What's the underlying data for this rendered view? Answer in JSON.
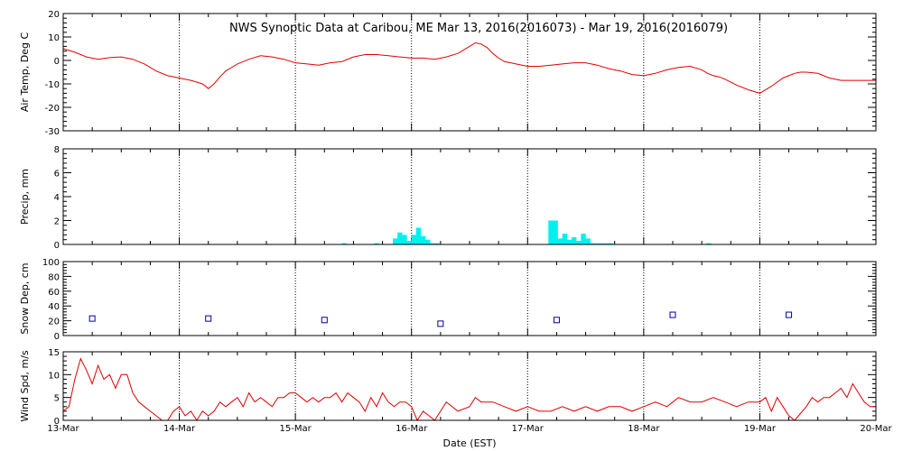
{
  "title": "NWS Synoptic Data at Caribou, ME   Mar 13, 2016(2016073) - Mar 19, 2016(2016079)",
  "colors": {
    "temp": "#e00000",
    "precip": "#00f0f0",
    "snow": "#0000a0",
    "wind": "#e00000",
    "grid": "#000000"
  },
  "chart_data": [
    {
      "type": "line",
      "ylabel": "Air Temp, Deg C",
      "ylim": [
        -30,
        20
      ],
      "yticks": [
        20,
        10,
        0,
        -10,
        -20,
        -30
      ],
      "xlim": [
        0,
        7
      ],
      "grid": true,
      "series": [
        {
          "x": [
            0,
            0.1,
            0.2,
            0.3,
            0.4,
            0.5,
            0.6,
            0.7,
            0.8,
            0.9,
            1.0,
            1.1,
            1.2,
            1.25,
            1.3,
            1.35,
            1.4,
            1.5,
            1.6,
            1.7,
            1.8,
            1.9,
            2.0,
            2.1,
            2.2,
            2.3,
            2.4,
            2.5,
            2.6,
            2.7,
            2.8,
            2.9,
            3.0,
            3.1,
            3.2,
            3.3,
            3.4,
            3.5,
            3.55,
            3.6,
            3.65,
            3.7,
            3.75,
            3.8,
            3.9,
            4.0,
            4.1,
            4.2,
            4.3,
            4.4,
            4.5,
            4.6,
            4.7,
            4.8,
            4.9,
            5.0,
            5.1,
            5.2,
            5.3,
            5.4,
            5.5,
            5.55,
            5.6,
            5.65,
            5.7,
            5.8,
            5.9,
            6.0,
            6.1,
            6.2,
            6.25,
            6.3,
            6.35,
            6.4,
            6.5,
            6.6,
            6.7,
            6.8,
            6.9,
            7.0
          ],
          "values": [
            5,
            3.5,
            1.5,
            0.5,
            1.2,
            1.5,
            0.5,
            -1.5,
            -4.5,
            -6.5,
            -7.5,
            -8.5,
            -10,
            -12,
            -10,
            -7,
            -4.5,
            -1.5,
            0.5,
            2,
            1.5,
            0.5,
            -1,
            -1.5,
            -2,
            -1,
            -0.5,
            1.5,
            2.5,
            2.5,
            2,
            1.5,
            1,
            1,
            0.5,
            1.5,
            3,
            6,
            7.5,
            7,
            5.5,
            3,
            1,
            -0.5,
            -1.5,
            -2.5,
            -2.5,
            -2,
            -1.5,
            -1,
            -1,
            -2,
            -3.5,
            -4.5,
            -6,
            -6.5,
            -5.5,
            -4,
            -3,
            -2.5,
            -4,
            -5.5,
            -6.5,
            -7,
            -8,
            -10.5,
            -12.5,
            -14,
            -11,
            -7.5,
            -6.5,
            -5.5,
            -5,
            -5,
            -5.5,
            -7.5,
            -8.5,
            -8.5,
            -8.5,
            -8.5
          ]
        }
      ]
    },
    {
      "type": "bar",
      "ylabel": "Precip, mm",
      "ylim": [
        0,
        8
      ],
      "yticks": [
        8,
        6,
        4,
        2,
        0
      ],
      "xlim": [
        0,
        7
      ],
      "grid": true,
      "x": [
        2.42,
        2.7,
        2.86,
        2.9,
        2.94,
        2.98,
        3.02,
        3.06,
        3.1,
        3.14,
        3.18,
        3.22,
        4.2,
        4.24,
        4.28,
        4.32,
        4.36,
        4.4,
        4.44,
        4.48,
        4.52,
        4.56,
        4.6,
        4.64,
        4.68,
        4.72,
        5.56
      ],
      "values": [
        0.1,
        0.1,
        0.5,
        1.0,
        0.8,
        0.3,
        0.8,
        1.4,
        0.7,
        0.4,
        0.1,
        0.1,
        2.0,
        2.0,
        0.5,
        0.9,
        0.4,
        0.6,
        0.3,
        0.9,
        0.5,
        0.1,
        0.1,
        0.1,
        0.1,
        0.1,
        0.1
      ]
    },
    {
      "type": "scatter",
      "ylabel": "Snow Dep, cm",
      "ylim": [
        0,
        100
      ],
      "yticks": [
        100,
        80,
        60,
        40,
        20,
        0
      ],
      "xlim": [
        0,
        7
      ],
      "grid": true,
      "x": [
        0.25,
        1.25,
        2.25,
        3.25,
        4.25,
        5.25,
        6.25
      ],
      "values": [
        23,
        23,
        21,
        16,
        21,
        28,
        28
      ]
    },
    {
      "type": "line",
      "ylabel": "Wind Spd, m/s",
      "xlabel": "Date (EST)",
      "ylim": [
        0,
        15
      ],
      "yticks": [
        15,
        10,
        5,
        0
      ],
      "xlim": [
        0,
        7
      ],
      "xticks": [
        "13-Mar",
        "14-Mar",
        "15-Mar",
        "16-Mar",
        "17-Mar",
        "18-Mar",
        "19-Mar",
        "20-Mar"
      ],
      "grid": true,
      "series": [
        {
          "x": [
            0,
            0.05,
            0.1,
            0.15,
            0.2,
            0.25,
            0.3,
            0.35,
            0.4,
            0.45,
            0.5,
            0.55,
            0.6,
            0.65,
            0.7,
            0.75,
            0.8,
            0.85,
            0.9,
            0.95,
            1.0,
            1.05,
            1.1,
            1.15,
            1.2,
            1.25,
            1.3,
            1.35,
            1.4,
            1.45,
            1.5,
            1.55,
            1.6,
            1.65,
            1.7,
            1.75,
            1.8,
            1.85,
            1.9,
            1.95,
            2.0,
            2.05,
            2.1,
            2.15,
            2.2,
            2.25,
            2.3,
            2.35,
            2.4,
            2.45,
            2.5,
            2.55,
            2.6,
            2.65,
            2.7,
            2.75,
            2.8,
            2.85,
            2.9,
            2.95,
            3.0,
            3.05,
            3.1,
            3.15,
            3.2,
            3.3,
            3.4,
            3.5,
            3.55,
            3.6,
            3.7,
            3.8,
            3.9,
            4.0,
            4.1,
            4.2,
            4.3,
            4.4,
            4.5,
            4.6,
            4.7,
            4.8,
            4.9,
            5.0,
            5.1,
            5.2,
            5.3,
            5.4,
            5.5,
            5.6,
            5.7,
            5.8,
            5.9,
            6.0,
            6.05,
            6.1,
            6.15,
            6.2,
            6.25,
            6.3,
            6.4,
            6.45,
            6.5,
            6.55,
            6.6,
            6.65,
            6.7,
            6.75,
            6.8,
            6.85,
            6.9,
            6.95,
            7.0
          ],
          "values": [
            2,
            3,
            9,
            13.5,
            11,
            8,
            12,
            9,
            10,
            7,
            10,
            10,
            6,
            4,
            3,
            2,
            1,
            0,
            0,
            2,
            3,
            1,
            2,
            0,
            2,
            1,
            2,
            4,
            3,
            4,
            5,
            3,
            6,
            4,
            5,
            4,
            3,
            5,
            5,
            6,
            6,
            5,
            4,
            5,
            4,
            5,
            5,
            6,
            4,
            6,
            5,
            4,
            2,
            5,
            3,
            6,
            4,
            3,
            4,
            4,
            3,
            0,
            2,
            1,
            0,
            4,
            2,
            3,
            5,
            4,
            4,
            3,
            2,
            3,
            2,
            2,
            3,
            2,
            3,
            2,
            3,
            3,
            2,
            3,
            4,
            3,
            5,
            4,
            4,
            5,
            4,
            3,
            4,
            4,
            5,
            2,
            5,
            3,
            1,
            0,
            3,
            5,
            4,
            5,
            5,
            6,
            7,
            5,
            8,
            6,
            4,
            3,
            3
          ]
        }
      ]
    }
  ]
}
